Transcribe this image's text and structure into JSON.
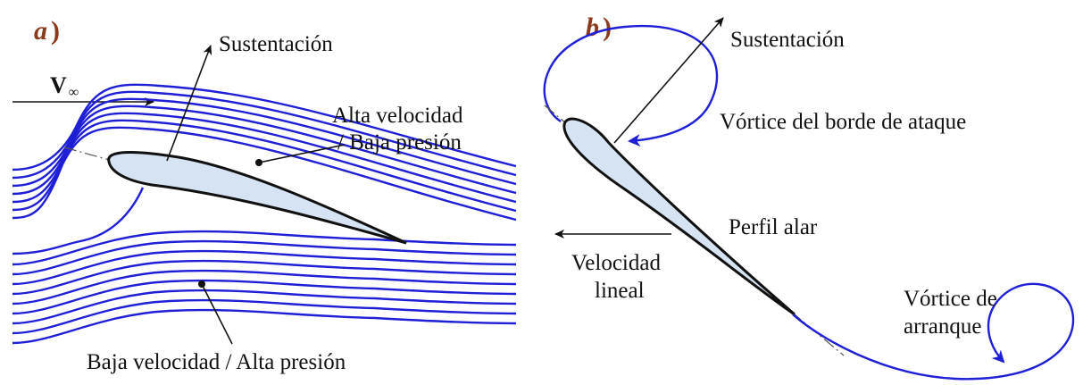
{
  "colors": {
    "streamline": "#1f1fd6",
    "airfoil_fill": "#d6e3f2",
    "airfoil_stroke": "#111111",
    "panel_label": "#8b3a1e",
    "vortex": "#1f1fd6"
  },
  "panel_a": {
    "label_letter": "a",
    "label_paren": ")",
    "freestream_symbol": "V",
    "freestream_subscript": "∞",
    "lift_label": "Sustentación",
    "upper_label_line1": "Alta velocidad",
    "upper_label_line2": "/ Baja presión",
    "lower_label": "Baja velocidad / Alta presión"
  },
  "panel_b": {
    "label_letter": "b",
    "label_paren": ")",
    "lift_label": "Sustentación",
    "leading_vortex_label": "Vórtice del borde de ataque",
    "airfoil_label": "Perfil alar",
    "velocity_label_line1": "Velocidad",
    "velocity_label_line2": "lineal",
    "starting_vortex_label_line1": "Vórtice de",
    "starting_vortex_label_line2": "arranque"
  }
}
